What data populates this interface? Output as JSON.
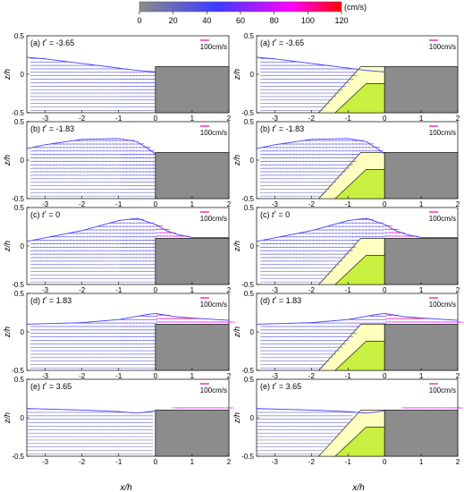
{
  "colorbar": {
    "unit": "(cm/s)",
    "ticks": [
      "0",
      "20",
      "40",
      "60",
      "80",
      "100",
      "120"
    ],
    "range": [
      0,
      120
    ],
    "colors": [
      "#8c8c8c",
      "#3b3bff",
      "#ff00ff",
      "#ff0000"
    ]
  },
  "chart_data": {
    "type": "vector-field",
    "xlabel": "x/h",
    "ylabel": "z/h",
    "xlim": [
      -3.5,
      2
    ],
    "ylim": [
      -0.5,
      0.5
    ],
    "xticks": [
      "-3",
      "-2",
      "-1",
      "0",
      "1",
      "2"
    ],
    "yticks": [
      "0.5",
      "0",
      "-0.5"
    ],
    "scale_label": "100cm/s",
    "step_crest_height": 0.1,
    "panels": [
      {
        "label": "(a)",
        "t_label": "t",
        "t_value": "-3.65",
        "column": "left",
        "row": 0,
        "has_breakwater": false
      },
      {
        "label": "(a)",
        "t_label": "t",
        "t_value": "-3.65",
        "column": "right",
        "row": 0,
        "has_breakwater": true
      },
      {
        "label": "(b)",
        "t_label": "t",
        "t_value": "-1.83",
        "column": "left",
        "row": 1,
        "has_breakwater": false
      },
      {
        "label": "(b)",
        "t_label": "t",
        "t_value": "-1.83",
        "column": "right",
        "row": 1,
        "has_breakwater": true
      },
      {
        "label": "(c)",
        "t_label": "t",
        "t_value": "0",
        "column": "left",
        "row": 2,
        "has_breakwater": false
      },
      {
        "label": "(c)",
        "t_label": "t",
        "t_value": "0",
        "column": "right",
        "row": 2,
        "has_breakwater": true
      },
      {
        "label": "(d)",
        "t_label": "t",
        "t_value": "1.83",
        "column": "left",
        "row": 3,
        "has_breakwater": false
      },
      {
        "label": "(d)",
        "t_label": "t",
        "t_value": "1.83",
        "column": "right",
        "row": 3,
        "has_breakwater": true
      },
      {
        "label": "(e)",
        "t_label": "t",
        "t_value": "3.65",
        "column": "left",
        "row": 4,
        "has_breakwater": false
      },
      {
        "label": "(e)",
        "t_label": "t",
        "t_value": "3.65",
        "column": "right",
        "row": 4,
        "has_breakwater": true
      }
    ],
    "surfaces": [
      {
        "x": [
          -3.5,
          -3,
          -2,
          -1,
          -0.5,
          0
        ],
        "y": [
          0.22,
          0.2,
          0.14,
          0.08,
          0.05,
          0.03
        ]
      },
      {
        "x": [
          -3.5,
          -3,
          -2,
          -1,
          -0.5,
          -0.2,
          0,
          0.1
        ],
        "y": [
          0.15,
          0.2,
          0.27,
          0.28,
          0.24,
          0.15,
          0.08,
          0.1
        ]
      },
      {
        "x": [
          -3.5,
          -2,
          -1,
          -0.5,
          0,
          0.3,
          0.6,
          1
        ],
        "y": [
          0.06,
          0.2,
          0.33,
          0.36,
          0.28,
          0.2,
          0.15,
          0.11
        ]
      },
      {
        "x": [
          -3.5,
          -2,
          -1,
          -0.3,
          0,
          0.5,
          1,
          2
        ],
        "y": [
          0.1,
          0.12,
          0.16,
          0.22,
          0.24,
          0.2,
          0.18,
          0.15
        ]
      },
      {
        "x": [
          -3.5,
          -2,
          -1,
          -0.5,
          0,
          0.5,
          1,
          2
        ],
        "y": [
          0.12,
          0.1,
          0.08,
          0.06,
          0.09,
          0.14,
          0.15,
          0.14
        ]
      }
    ]
  }
}
